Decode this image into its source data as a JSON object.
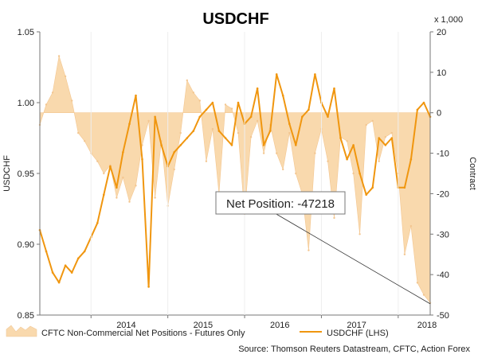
{
  "chart_data": {
    "type": "line",
    "title": "USDCHF",
    "left_axis": {
      "label": "USDCHF",
      "ylim": [
        0.85,
        1.05
      ],
      "ticks": [
        "1.05",
        "1.00",
        "0.95",
        "0.90",
        "0.85"
      ],
      "tick_values": [
        1.05,
        1.0,
        0.95,
        0.9,
        0.85
      ]
    },
    "right_axis": {
      "label": "Contract",
      "unit_label": "x 1,000",
      "ylim": [
        -50,
        20
      ],
      "ticks": [
        "20",
        "10",
        "0",
        "-10",
        "-20",
        "-30",
        "-40",
        "-50"
      ],
      "tick_values": [
        20,
        10,
        0,
        -10,
        -20,
        -30,
        -40,
        -50
      ]
    },
    "x_axis": {
      "range": [
        "2013-05",
        "2018-06"
      ],
      "ticks": [
        "2014",
        "2015",
        "2016",
        "2017",
        "2018"
      ],
      "tick_dates": [
        "2014-01",
        "2015-01",
        "2016-01",
        "2017-01",
        "2018-01"
      ]
    },
    "grid": false,
    "series": [
      {
        "name": "CFTC Non-Commercial Net Positions - Futures Only",
        "type": "area",
        "axis": "right",
        "color": "#f9d9ad",
        "x": [
          "2013-05",
          "2013-06",
          "2013-07",
          "2013-08",
          "2013-09",
          "2013-10",
          "2013-11",
          "2013-12",
          "2014-01",
          "2014-02",
          "2014-03",
          "2014-04",
          "2014-05",
          "2014-06",
          "2014-07",
          "2014-08",
          "2014-09",
          "2014-10",
          "2014-11",
          "2014-12",
          "2015-01",
          "2015-02",
          "2015-03",
          "2015-04",
          "2015-05",
          "2015-06",
          "2015-07",
          "2015-08",
          "2015-09",
          "2015-10",
          "2015-11",
          "2015-12",
          "2016-01",
          "2016-02",
          "2016-03",
          "2016-04",
          "2016-05",
          "2016-06",
          "2016-07",
          "2016-08",
          "2016-09",
          "2016-10",
          "2016-11",
          "2016-12",
          "2017-01",
          "2017-02",
          "2017-03",
          "2017-04",
          "2017-05",
          "2017-06",
          "2017-07",
          "2017-08",
          "2017-09",
          "2017-10",
          "2017-11",
          "2017-12",
          "2018-01",
          "2018-02",
          "2018-03",
          "2018-04",
          "2018-05",
          "2018-06"
        ],
        "values": [
          -3,
          2,
          5,
          14,
          9,
          3,
          -5,
          -7,
          -10,
          -12,
          -15,
          -13,
          -21,
          -16,
          -22,
          -18,
          -8,
          -2,
          -21,
          -7,
          -23,
          -14,
          -5,
          8,
          5,
          3,
          -12,
          -4,
          -20,
          2,
          1,
          -5,
          -25,
          -6,
          -2,
          -10,
          -3,
          -10,
          -14,
          -5,
          -15,
          -20,
          -34,
          -10,
          -4,
          -12,
          -26,
          -6,
          -7,
          -15,
          -30,
          -3,
          -2,
          -12,
          -6,
          -5,
          -15,
          -35,
          -28,
          -42,
          -45,
          -47
        ]
      },
      {
        "name": "USDCHF (LHS)",
        "type": "line",
        "axis": "left",
        "color": "#f0960f",
        "x": [
          "2013-05",
          "2013-06",
          "2013-07",
          "2013-08",
          "2013-09",
          "2013-10",
          "2013-11",
          "2013-12",
          "2014-01",
          "2014-02",
          "2014-03",
          "2014-04",
          "2014-05",
          "2014-06",
          "2014-07",
          "2014-08",
          "2014-09",
          "2014-10",
          "2014-11",
          "2014-12",
          "2015-01",
          "2015-02",
          "2015-03",
          "2015-04",
          "2015-05",
          "2015-06",
          "2015-07",
          "2015-08",
          "2015-09",
          "2015-10",
          "2015-11",
          "2015-12",
          "2016-01",
          "2016-02",
          "2016-03",
          "2016-04",
          "2016-05",
          "2016-06",
          "2016-07",
          "2016-08",
          "2016-09",
          "2016-10",
          "2016-11",
          "2016-12",
          "2017-01",
          "2017-02",
          "2017-03",
          "2017-04",
          "2017-05",
          "2017-06",
          "2017-07",
          "2017-08",
          "2017-09",
          "2017-10",
          "2017-11",
          "2017-12",
          "2018-01",
          "2018-02",
          "2018-03",
          "2018-04",
          "2018-05",
          "2018-06"
        ],
        "values": [
          0.91,
          0.895,
          0.88,
          0.873,
          0.885,
          0.88,
          0.89,
          0.895,
          0.905,
          0.915,
          0.935,
          0.955,
          0.94,
          0.965,
          0.985,
          1.005,
          0.96,
          0.87,
          0.99,
          0.97,
          0.955,
          0.965,
          0.97,
          0.975,
          0.98,
          0.99,
          0.995,
          1.0,
          0.98,
          0.975,
          0.97,
          1.0,
          0.985,
          0.99,
          1.01,
          0.97,
          0.98,
          1.02,
          1.005,
          0.985,
          0.97,
          0.99,
          0.995,
          1.02,
          1.0,
          0.99,
          1.01,
          0.975,
          0.96,
          0.97,
          0.95,
          0.935,
          0.94,
          0.975,
          0.97,
          0.975,
          0.94,
          0.94,
          0.96,
          0.995,
          1.0,
          0.99
        ]
      }
    ],
    "annotation": {
      "label": "Net Position: -47218",
      "points_to": {
        "x": "2018-06",
        "value": -47218
      }
    },
    "legend": {
      "placement": "bottom"
    },
    "source": "Source: Thomson Reuters Datastream, CFTC, Action Forex"
  }
}
